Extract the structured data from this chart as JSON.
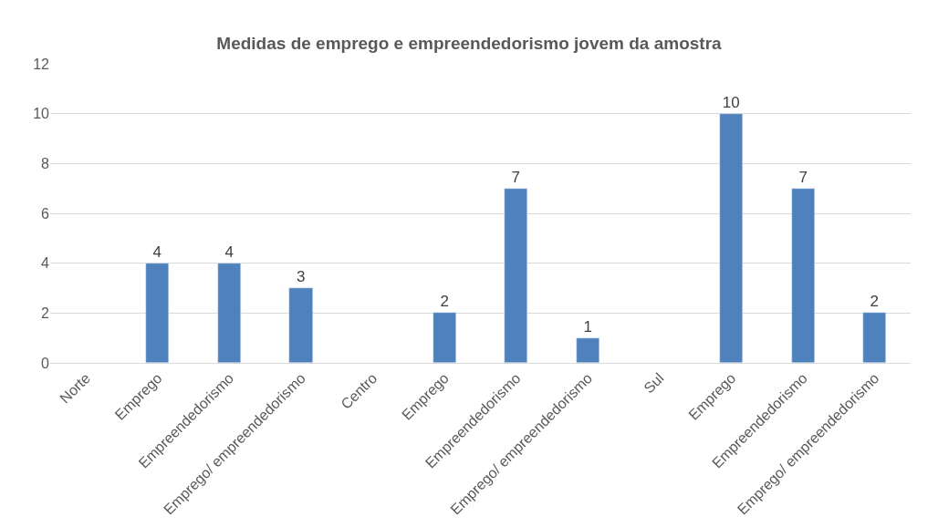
{
  "chart_data": {
    "type": "bar",
    "title": "Medidas de emprego e empreendedorismo jovem da amostra",
    "categories": [
      "Norte",
      "Emprego",
      "Empreendedorismo",
      "Emprego/ empreendedorismo",
      "Centro",
      "Emprego",
      "Empreendedorismo",
      "Emprego/ empreendedorismo",
      "Sul",
      "Emprego",
      "Empreendedorismo",
      "Emprego/ empreendedorismo"
    ],
    "values": [
      null,
      4,
      4,
      3,
      null,
      2,
      7,
      1,
      null,
      10,
      7,
      2
    ],
    "color": "#4f81bd",
    "ylim": [
      0,
      12
    ],
    "yticks": [
      0,
      2,
      4,
      6,
      8,
      10,
      12
    ],
    "grid": "y",
    "data_labels": true,
    "legend": false
  }
}
